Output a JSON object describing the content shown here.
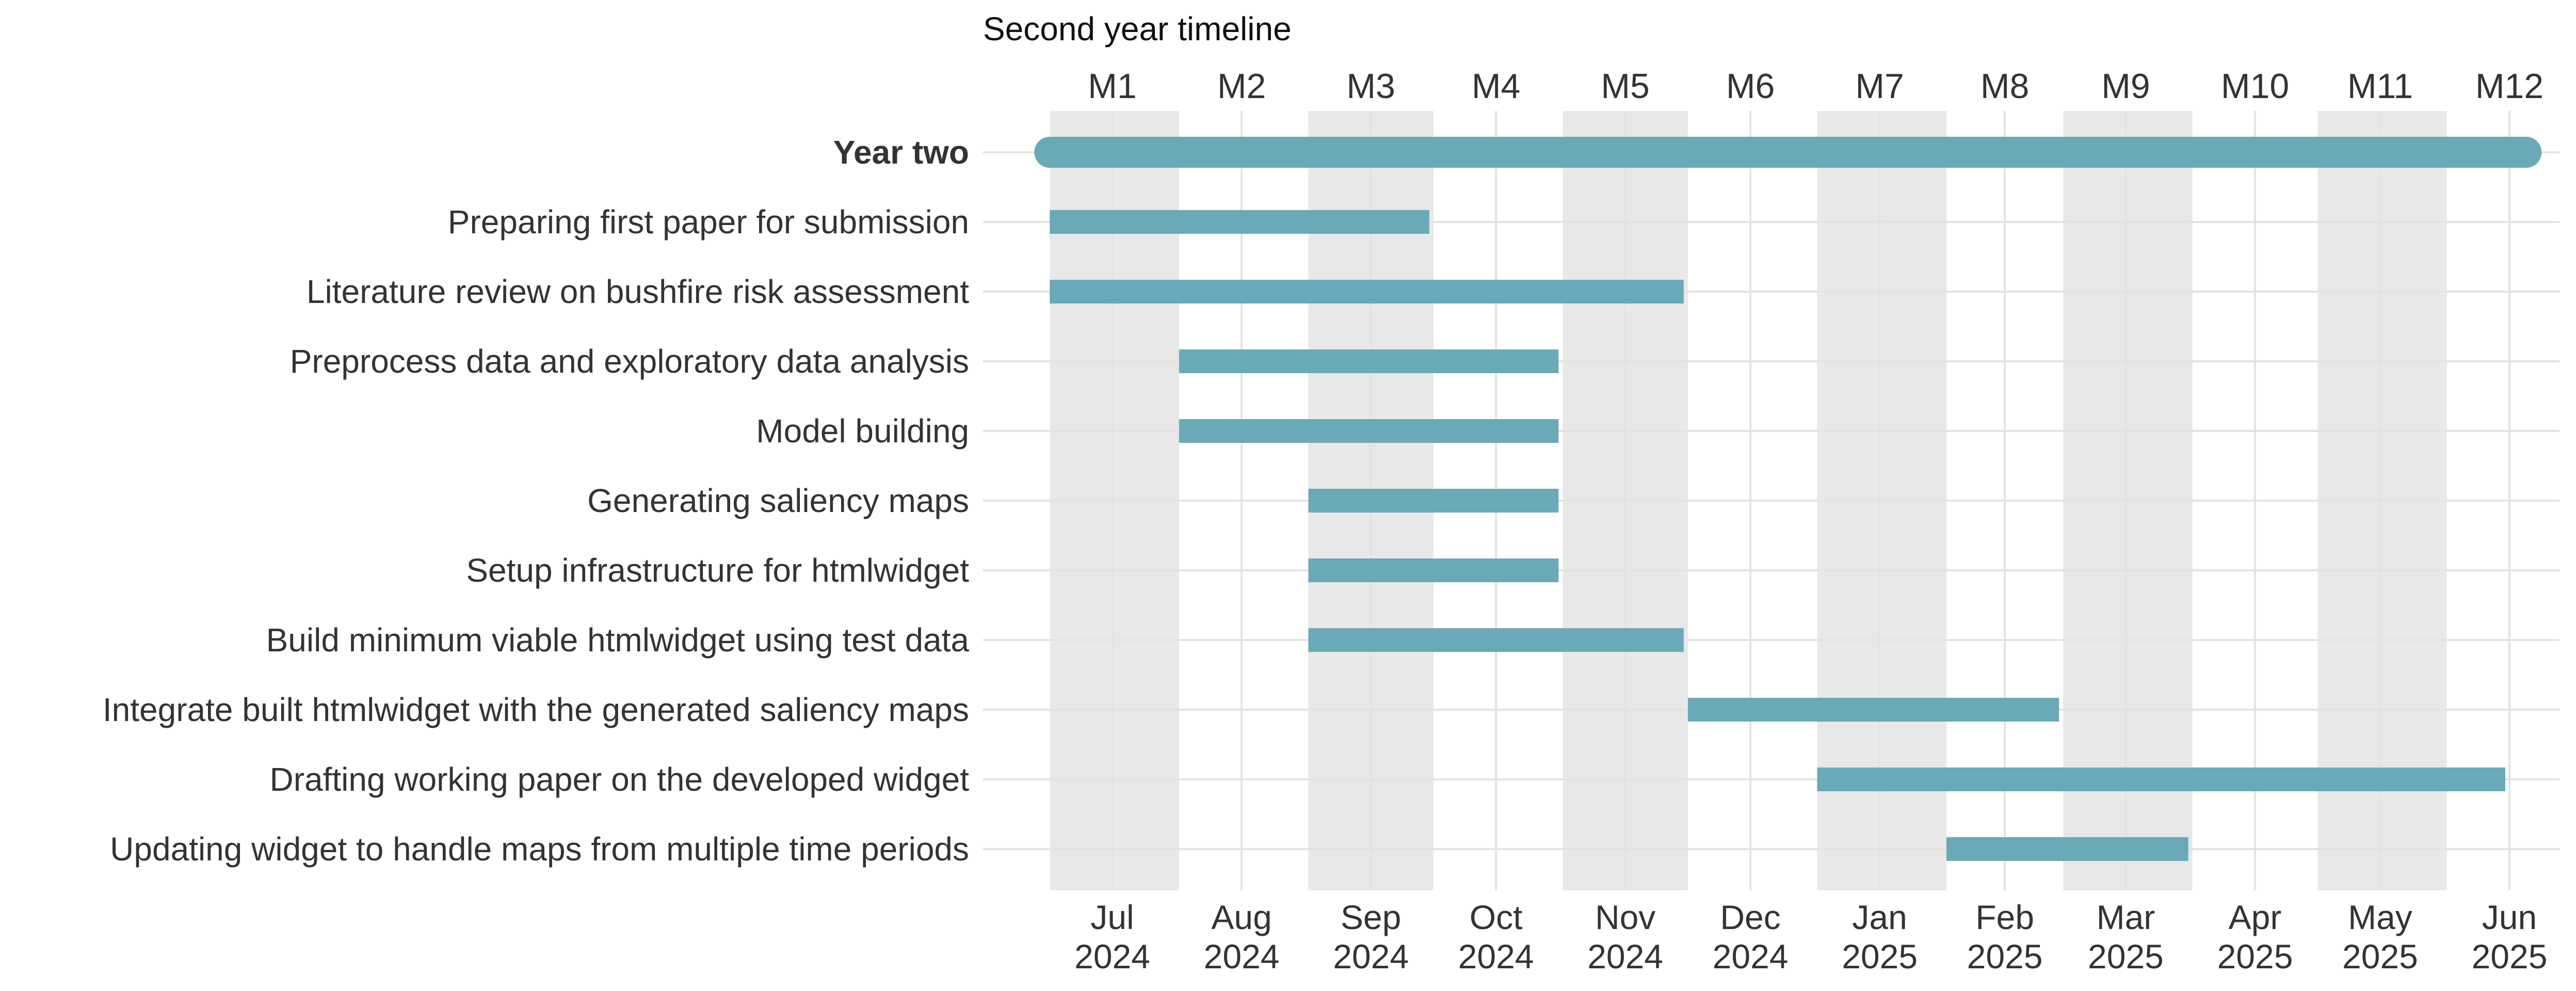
{
  "chart_data": {
    "type": "gantt",
    "title": "Second year timeline",
    "bar_color": "#6aa9b8",
    "band_color": "#e8e8e8",
    "grid_color": "#e3e3e3",
    "x_axis": {
      "type": "date",
      "range": [
        "2024-06-15",
        "2025-06-28"
      ]
    },
    "months": [
      {
        "label": "M1",
        "start": "2024-07-01",
        "end": "2024-08-01",
        "mid": "2024-07-16",
        "tick_month": "Jul",
        "tick_year": "2024",
        "shaded": true
      },
      {
        "label": "M2",
        "start": "2024-08-01",
        "end": "2024-09-01",
        "mid": "2024-08-16",
        "tick_month": "Aug",
        "tick_year": "2024",
        "shaded": false
      },
      {
        "label": "M3",
        "start": "2024-09-01",
        "end": "2024-10-01",
        "mid": "2024-09-16",
        "tick_month": "Sep",
        "tick_year": "2024",
        "shaded": true
      },
      {
        "label": "M4",
        "start": "2024-10-01",
        "end": "2024-11-01",
        "mid": "2024-10-16",
        "tick_month": "Oct",
        "tick_year": "2024",
        "shaded": false
      },
      {
        "label": "M5",
        "start": "2024-11-01",
        "end": "2024-12-01",
        "mid": "2024-11-16",
        "tick_month": "Nov",
        "tick_year": "2024",
        "shaded": true
      },
      {
        "label": "M6",
        "start": "2024-12-01",
        "end": "2025-01-01",
        "mid": "2024-12-16",
        "tick_month": "Dec",
        "tick_year": "2024",
        "shaded": false
      },
      {
        "label": "M7",
        "start": "2025-01-01",
        "end": "2025-02-01",
        "mid": "2025-01-16",
        "tick_month": "Jan",
        "tick_year": "2025",
        "shaded": true
      },
      {
        "label": "M8",
        "start": "2025-02-01",
        "end": "2025-03-01",
        "mid": "2025-02-15",
        "tick_month": "Feb",
        "tick_year": "2025",
        "shaded": false
      },
      {
        "label": "M9",
        "start": "2025-03-01",
        "end": "2025-04-01",
        "mid": "2025-03-16",
        "tick_month": "Mar",
        "tick_year": "2025",
        "shaded": true
      },
      {
        "label": "M10",
        "start": "2025-04-01",
        "end": "2025-05-01",
        "mid": "2025-04-16",
        "tick_month": "Apr",
        "tick_year": "2025",
        "shaded": false
      },
      {
        "label": "M11",
        "start": "2025-05-01",
        "end": "2025-06-01",
        "mid": "2025-05-16",
        "tick_month": "May",
        "tick_year": "2025",
        "shaded": true
      },
      {
        "label": "M12",
        "start": "2025-06-01",
        "end": "2025-07-01",
        "mid": "2025-06-16",
        "tick_month": "Jun",
        "tick_year": "2025",
        "shaded": false
      }
    ],
    "tasks": [
      {
        "name": "Year two",
        "start": "2024-07-01",
        "end": "2025-06-20",
        "summary": true
      },
      {
        "name": "Preparing first paper for submission",
        "start": "2024-07-01",
        "end": "2024-09-30"
      },
      {
        "name": "Literature review on bushfire risk assessment",
        "start": "2024-07-01",
        "end": "2024-11-30"
      },
      {
        "name": "Preprocess data and exploratory data analysis",
        "start": "2024-08-01",
        "end": "2024-10-31"
      },
      {
        "name": "Model building",
        "start": "2024-08-01",
        "end": "2024-10-31"
      },
      {
        "name": "Generating saliency maps",
        "start": "2024-09-01",
        "end": "2024-10-31"
      },
      {
        "name": "Setup infrastructure for htmlwidget",
        "start": "2024-09-01",
        "end": "2024-10-31"
      },
      {
        "name": "Build minimum viable htmlwidget using test data",
        "start": "2024-09-01",
        "end": "2024-11-30"
      },
      {
        "name": "Integrate built htmlwidget with the generated saliency maps",
        "start": "2024-12-01",
        "end": "2025-02-28"
      },
      {
        "name": "Drafting working paper on the developed widget",
        "start": "2025-01-01",
        "end": "2025-06-15"
      },
      {
        "name": "Updating widget to handle maps from multiple time periods",
        "start": "2025-02-01",
        "end": "2025-03-31"
      }
    ]
  }
}
